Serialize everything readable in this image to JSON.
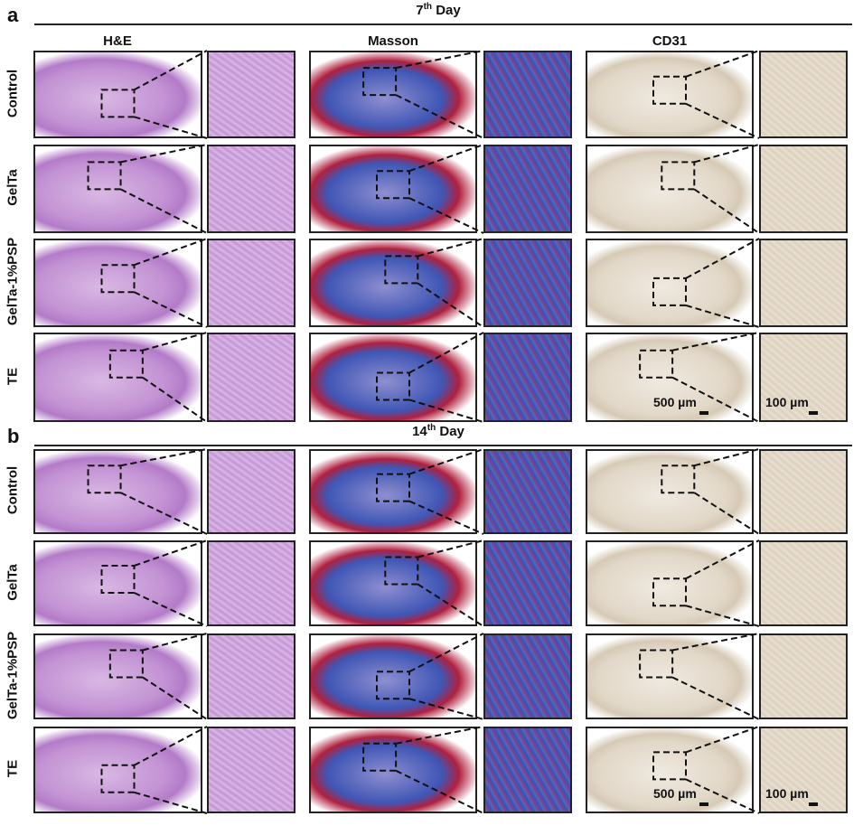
{
  "panel_a": {
    "letter": "a",
    "day": "7",
    "day_suffix": "th",
    "day_word": " Day"
  },
  "panel_b": {
    "letter": "b",
    "day": "14",
    "day_suffix": "th",
    "day_word": " Day"
  },
  "columns": [
    "H&E",
    "Masson",
    "CD31"
  ],
  "rows": [
    "Control",
    "GelTa",
    "GelTa-1%PSP",
    "TE"
  ],
  "scale_bars": {
    "overview": "500 µm",
    "zoom": "100 µm"
  },
  "colors": {
    "he": "#c69ad6",
    "masson": "#4a5fb8",
    "masson_red": "#c2204a",
    "cd31": "#e8e1d6"
  }
}
